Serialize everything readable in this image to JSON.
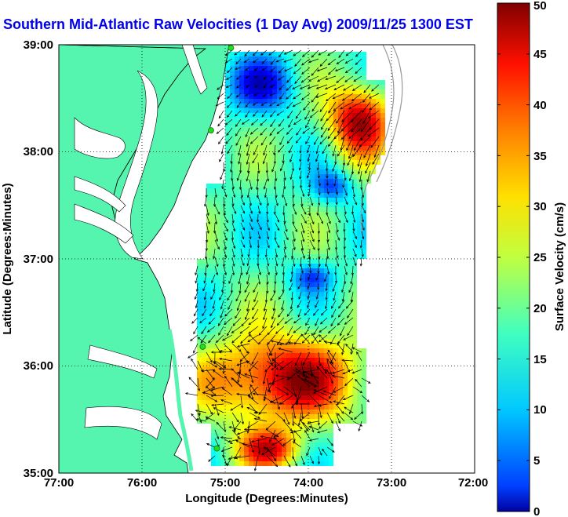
{
  "title": "Southern Mid-Atlantic Raw Velocities (1 Day Avg) 2009/11/25 1300 EST",
  "x_axis": {
    "label": "Longitude (Degrees:Minutes)",
    "ticks": [
      "77:00",
      "76:00",
      "75:00",
      "74:00",
      "73:00",
      "72:00"
    ]
  },
  "y_axis": {
    "label": "Latitude (Degrees:Minutes)",
    "ticks": [
      "39:00",
      "38:00",
      "37:00",
      "36:00",
      "35:00"
    ]
  },
  "colorbar": {
    "label": "Surface Velocity (cm/s)",
    "ticks": [
      "0",
      "5",
      "10",
      "15",
      "20",
      "25",
      "30",
      "35",
      "40",
      "45",
      "50"
    ],
    "range": [
      0,
      50
    ],
    "colormap": "jet"
  },
  "extent": {
    "lon": [
      -77,
      -72
    ],
    "lat": [
      35,
      39
    ]
  },
  "grid": "dotted",
  "colors": {
    "land": "#55f5b0",
    "title": "#0000ee",
    "coast": "#000000",
    "station": "#22dd22"
  },
  "stations": [
    {
      "lon": -74.93,
      "lat": 38.97
    },
    {
      "lon": -75.17,
      "lat": 38.2
    },
    {
      "lon": -75.27,
      "lat": 36.18
    },
    {
      "lon": -75.1,
      "lat": 35.23
    }
  ]
}
